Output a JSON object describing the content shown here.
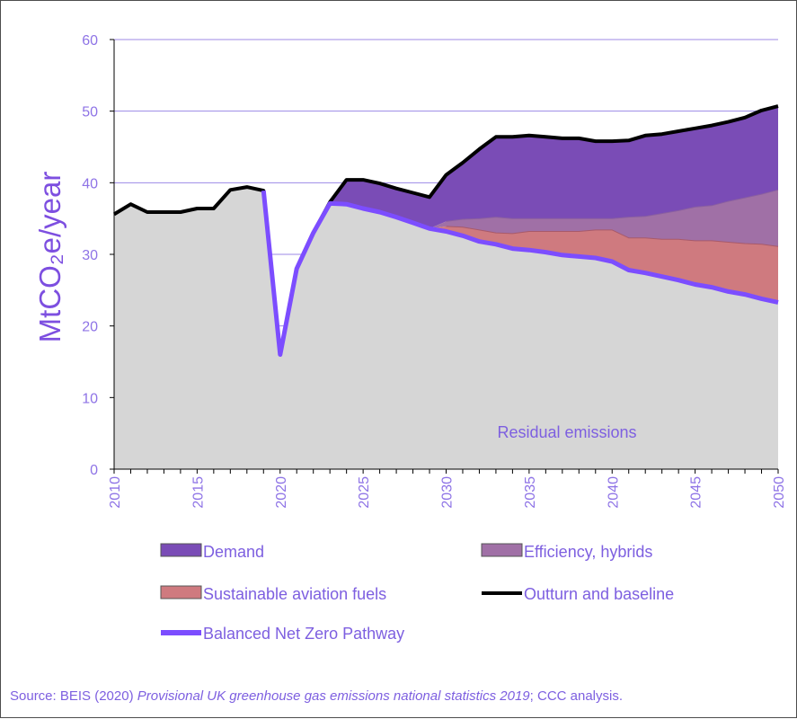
{
  "chart_data": {
    "type": "area",
    "title": "",
    "xlabel": "",
    "ylabel": "MtCO₂e/year",
    "xlim": [
      2010,
      2050
    ],
    "ylim": [
      0,
      60
    ],
    "x_ticks": [
      "2010",
      "2015",
      "2020",
      "2025",
      "2030",
      "2035",
      "2040",
      "2045",
      "2050"
    ],
    "y_ticks": [
      "0",
      "10",
      "20",
      "30",
      "40",
      "50",
      "60"
    ],
    "grid": "horizontal",
    "annotation": "Residual emissions",
    "colors": {
      "residual": "#d6d6d6",
      "saf": "#cf7a7f",
      "efficiency": "#a070a6",
      "demand": "#7a4cb6",
      "outturn": "#000000",
      "pathway": "#7c4dff",
      "grid": "#9c8ae6",
      "axis_text": "#8e73e6"
    },
    "years": [
      2010,
      2011,
      2012,
      2013,
      2014,
      2015,
      2016,
      2017,
      2018,
      2019,
      2020,
      2021,
      2022,
      2023,
      2024,
      2025,
      2026,
      2027,
      2028,
      2029,
      2030,
      2031,
      2032,
      2033,
      2034,
      2035,
      2036,
      2037,
      2038,
      2039,
      2040,
      2041,
      2042,
      2043,
      2044,
      2045,
      2046,
      2047,
      2048,
      2049,
      2050
    ],
    "series": [
      {
        "name": "Outturn and baseline",
        "values": [
          35.6,
          37.0,
          35.9,
          35.9,
          35.9,
          36.4,
          36.4,
          39.0,
          39.4,
          38.9,
          16.0,
          28.0,
          33.0,
          37.3,
          40.4,
          40.4,
          39.9,
          39.2,
          38.6,
          38.0,
          41.1,
          42.8,
          44.7,
          46.4,
          46.4,
          46.6,
          46.4,
          46.2,
          46.2,
          45.8,
          45.8,
          45.9,
          46.6,
          46.8,
          47.2,
          47.6,
          48.0,
          48.5,
          49.1,
          50.1,
          50.7
        ]
      },
      {
        "name": "Balanced Net Zero Pathway",
        "values": [
          35.6,
          37.0,
          35.9,
          35.9,
          35.9,
          36.4,
          36.4,
          39.0,
          39.4,
          38.9,
          16.0,
          28.0,
          33.0,
          37.1,
          37.0,
          36.4,
          35.9,
          35.2,
          34.4,
          33.6,
          33.2,
          32.6,
          31.8,
          31.4,
          30.8,
          30.6,
          30.3,
          29.9,
          29.7,
          29.5,
          29.0,
          27.8,
          27.4,
          26.9,
          26.4,
          25.8,
          25.4,
          24.8,
          24.4,
          23.8,
          23.3
        ]
      },
      {
        "name": "Sustainable aviation fuels",
        "values": [
          null,
          null,
          null,
          null,
          null,
          null,
          null,
          null,
          null,
          null,
          null,
          null,
          null,
          null,
          null,
          null,
          null,
          null,
          null,
          null,
          33.9,
          33.8,
          33.4,
          33.0,
          32.9,
          33.2,
          33.2,
          33.2,
          33.2,
          33.4,
          33.4,
          32.3,
          32.3,
          32.1,
          32.1,
          31.9,
          31.9,
          31.7,
          31.5,
          31.4,
          31.1
        ]
      },
      {
        "name": "Efficiency, hybrids",
        "values": [
          null,
          null,
          null,
          null,
          null,
          null,
          null,
          null,
          null,
          null,
          null,
          null,
          null,
          null,
          null,
          null,
          null,
          null,
          null,
          null,
          34.6,
          34.9,
          35.0,
          35.2,
          35.0,
          35.0,
          35.0,
          35.0,
          35.0,
          35.0,
          35.0,
          35.2,
          35.3,
          35.7,
          36.1,
          36.6,
          36.8,
          37.4,
          37.9,
          38.4,
          39.0
        ]
      },
      {
        "name": "Demand",
        "values": []
      }
    ]
  },
  "legend": [
    {
      "key": "demand",
      "label": "Demand"
    },
    {
      "key": "efficiency",
      "label": "Efficiency, hybrids"
    },
    {
      "key": "saf",
      "label": "Sustainable aviation fuels"
    },
    {
      "key": "outturn",
      "label": "Outturn and baseline"
    },
    {
      "key": "pathway",
      "label": "Balanced Net Zero Pathway"
    }
  ],
  "source": {
    "prefix": "Source: BEIS (2020) ",
    "italic": "Provisional UK greenhouse gas emissions national statistics 2019",
    "suffix": "; CCC analysis."
  }
}
